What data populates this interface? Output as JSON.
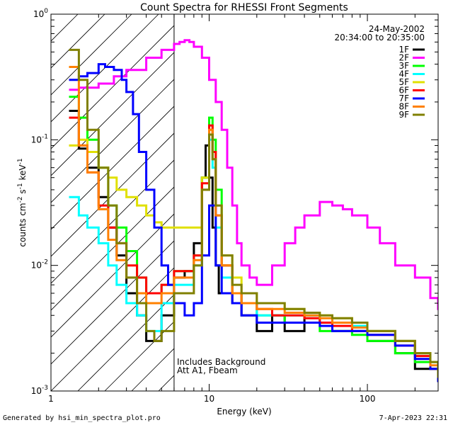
{
  "chart_data": {
    "type": "line",
    "title": "Count Spectra for RHESSI Front Segments",
    "xlabel": "Energy (keV)",
    "ylabel_parts": {
      "base": "counts cm",
      "exp1": "-2",
      "mid1": " s",
      "exp2": "-1",
      "mid2": " keV",
      "exp3": "-1"
    },
    "xscale": "log",
    "yscale": "log",
    "xlim": [
      1,
      280
    ],
    "ylim": [
      0.001,
      1.0
    ],
    "x_tick_labels": [
      {
        "value": 1,
        "label": "1"
      },
      {
        "value": 10,
        "label": "10"
      },
      {
        "value": 100,
        "label": "100"
      }
    ],
    "y_tick_labels": [
      {
        "value": 0.001,
        "base": "10",
        "exp": "-3"
      },
      {
        "value": 0.01,
        "base": "10",
        "exp": "-2"
      },
      {
        "value": 0.1,
        "base": "10",
        "exp": "-1"
      },
      {
        "value": 1.0,
        "base": "10",
        "exp": "0"
      }
    ],
    "hatched_region": {
      "from": 1,
      "to": 6
    },
    "annotation_top_right": [
      "24-May-2002",
      "20:34:00 to 20:35:00"
    ],
    "annotation_bottom": [
      "Includes Background",
      "Att A1, Fbeam"
    ],
    "legend_position": "top-right",
    "series": [
      {
        "name": "1F",
        "color": "#000000",
        "x": [
          1.3,
          1.5,
          1.7,
          2.0,
          2.3,
          2.6,
          3.0,
          3.5,
          4.0,
          5.0,
          6.0,
          7.0,
          8.0,
          9.0,
          9.5,
          10.0,
          10.5,
          11,
          11.5,
          12,
          14,
          16,
          20,
          25,
          30,
          40,
          50,
          60,
          80,
          100,
          150,
          200,
          250,
          280
        ],
        "y": [
          0.17,
          0.085,
          0.06,
          0.035,
          0.02,
          0.012,
          0.006,
          0.004,
          0.0025,
          0.004,
          0.008,
          0.009,
          0.015,
          0.05,
          0.09,
          0.05,
          0.02,
          0.01,
          0.006,
          0.006,
          0.005,
          0.004,
          0.003,
          0.004,
          0.003,
          0.004,
          0.0035,
          0.003,
          0.003,
          0.0025,
          0.002,
          0.0015,
          0.0015,
          0.0012
        ]
      },
      {
        "name": "2F",
        "color": "#ff00ff",
        "x": [
          1.3,
          1.5,
          2.0,
          2.5,
          3.0,
          4.0,
          5.0,
          6.0,
          6.5,
          7.0,
          7.5,
          8.0,
          9.0,
          10.0,
          11.0,
          12.0,
          13.0,
          14.0,
          15.0,
          16.0,
          18.0,
          20.0,
          25.0,
          30.0,
          35.0,
          40.0,
          50.0,
          60.0,
          70.0,
          80.0,
          100.0,
          120.0,
          150.0,
          200.0,
          250.0,
          280.0
        ],
        "y": [
          0.25,
          0.26,
          0.28,
          0.32,
          0.36,
          0.45,
          0.52,
          0.58,
          0.6,
          0.62,
          0.6,
          0.55,
          0.45,
          0.3,
          0.2,
          0.12,
          0.06,
          0.03,
          0.015,
          0.01,
          0.008,
          0.007,
          0.01,
          0.015,
          0.02,
          0.025,
          0.032,
          0.03,
          0.028,
          0.025,
          0.02,
          0.015,
          0.01,
          0.008,
          0.0055,
          0.0045
        ]
      },
      {
        "name": "3F",
        "color": "#00ff00",
        "x": [
          1.3,
          1.5,
          1.7,
          2.0,
          2.3,
          2.6,
          3.0,
          3.5,
          4.0,
          5.0,
          6.0,
          8.0,
          9.0,
          10.0,
          10.5,
          11.0,
          12.0,
          14.0,
          16.0,
          20.0,
          25.0,
          30.0,
          40.0,
          50.0,
          60.0,
          80.0,
          100.0,
          150.0,
          200.0,
          250.0,
          280.0
        ],
        "y": [
          0.22,
          0.15,
          0.1,
          0.06,
          0.03,
          0.02,
          0.013,
          0.008,
          0.006,
          0.007,
          0.009,
          0.012,
          0.05,
          0.15,
          0.1,
          0.04,
          0.01,
          0.006,
          0.005,
          0.004,
          0.004,
          0.0035,
          0.0035,
          0.003,
          0.003,
          0.0028,
          0.0025,
          0.002,
          0.0017,
          0.0015,
          0.0012
        ]
      },
      {
        "name": "4F",
        "color": "#00ffff",
        "x": [
          1.3,
          1.5,
          1.7,
          2.0,
          2.3,
          2.6,
          3.0,
          3.5,
          4.0,
          5.0,
          6.0,
          8.0,
          9.0,
          10.0,
          10.5,
          11.0,
          12.0,
          14.0,
          16.0,
          20.0,
          25.0,
          30.0,
          40.0,
          50.0,
          60.0,
          80.0,
          100.0,
          150.0,
          200.0,
          250.0,
          280.0
        ],
        "y": [
          0.035,
          0.025,
          0.02,
          0.015,
          0.01,
          0.007,
          0.005,
          0.004,
          0.003,
          0.005,
          0.007,
          0.01,
          0.04,
          0.1,
          0.06,
          0.02,
          0.008,
          0.006,
          0.005,
          0.004,
          0.004,
          0.004,
          0.004,
          0.0035,
          0.0035,
          0.0033,
          0.003,
          0.0025,
          0.002,
          0.0017,
          0.0014
        ]
      },
      {
        "name": "5F",
        "color": "#e0e000",
        "x": [
          1.3,
          1.5,
          1.7,
          2.0,
          2.3,
          2.6,
          3.0,
          3.5,
          4.0,
          4.5,
          5.0,
          6.0,
          8.0,
          9.0,
          10.0,
          10.5,
          11.0,
          12.0,
          14.0,
          16.0,
          20.0,
          25.0,
          30.0,
          40.0,
          50.0,
          60.0,
          80.0,
          100.0,
          150.0,
          200.0,
          250.0,
          280.0
        ],
        "y": [
          0.09,
          0.1,
          0.08,
          0.06,
          0.05,
          0.04,
          0.035,
          0.03,
          0.025,
          0.022,
          0.02,
          0.02,
          0.02,
          0.05,
          0.12,
          0.08,
          0.03,
          0.012,
          0.008,
          0.006,
          0.005,
          0.005,
          0.0045,
          0.0042,
          0.004,
          0.0038,
          0.0035,
          0.003,
          0.0025,
          0.002,
          0.0017,
          0.0013
        ]
      },
      {
        "name": "6F",
        "color": "#ff0000",
        "x": [
          1.3,
          1.5,
          1.7,
          2.0,
          2.3,
          2.6,
          3.0,
          3.5,
          4.0,
          5.0,
          6.0,
          8.0,
          9.0,
          10.0,
          10.5,
          11.0,
          12.0,
          14.0,
          16.0,
          20.0,
          25.0,
          30.0,
          40.0,
          50.0,
          60.0,
          80.0,
          100.0,
          150.0,
          200.0,
          250.0,
          280.0
        ],
        "y": [
          0.15,
          0.09,
          0.055,
          0.03,
          0.02,
          0.015,
          0.01,
          0.008,
          0.006,
          0.007,
          0.009,
          0.012,
          0.045,
          0.13,
          0.08,
          0.025,
          0.01,
          0.006,
          0.005,
          0.0045,
          0.004,
          0.004,
          0.0038,
          0.0035,
          0.0033,
          0.003,
          0.0028,
          0.0023,
          0.0019,
          0.0015,
          0.0012
        ]
      },
      {
        "name": "7F",
        "color": "#0000ff",
        "x": [
          1.3,
          1.5,
          1.7,
          2.0,
          2.2,
          2.5,
          2.8,
          3.0,
          3.3,
          3.6,
          4.0,
          4.5,
          5.0,
          5.5,
          6.0,
          7.0,
          8.0,
          9.0,
          10.0,
          11.0,
          12.0,
          14.0,
          16.0,
          20.0,
          25.0,
          30.0,
          40.0,
          50.0,
          60.0,
          80.0,
          100.0,
          150.0,
          200.0,
          250.0,
          280.0
        ],
        "y": [
          0.3,
          0.32,
          0.34,
          0.4,
          0.38,
          0.36,
          0.3,
          0.24,
          0.16,
          0.08,
          0.04,
          0.02,
          0.01,
          0.007,
          0.005,
          0.004,
          0.005,
          0.012,
          0.03,
          0.01,
          0.006,
          0.005,
          0.004,
          0.0035,
          0.0035,
          0.0035,
          0.0035,
          0.0033,
          0.003,
          0.003,
          0.0028,
          0.0023,
          0.0018,
          0.0015,
          0.0012
        ]
      },
      {
        "name": "8F",
        "color": "#ff8000",
        "x": [
          1.3,
          1.5,
          1.7,
          2.0,
          2.3,
          2.6,
          3.0,
          3.5,
          4.0,
          5.0,
          6.0,
          8.0,
          9.0,
          10.0,
          10.5,
          11.0,
          12.0,
          14.0,
          16.0,
          20.0,
          25.0,
          30.0,
          40.0,
          50.0,
          60.0,
          80.0,
          100.0,
          150.0,
          200.0,
          250.0,
          280.0
        ],
        "y": [
          0.38,
          0.09,
          0.055,
          0.028,
          0.016,
          0.011,
          0.008,
          0.006,
          0.005,
          0.006,
          0.008,
          0.011,
          0.04,
          0.12,
          0.07,
          0.025,
          0.01,
          0.006,
          0.005,
          0.0045,
          0.0045,
          0.0042,
          0.004,
          0.0038,
          0.0035,
          0.0032,
          0.003,
          0.0025,
          0.002,
          0.0016,
          0.0013
        ]
      },
      {
        "name": "9F",
        "color": "#808000",
        "x": [
          1.3,
          1.5,
          1.7,
          2.0,
          2.3,
          2.6,
          3.0,
          3.5,
          4.0,
          4.5,
          5.0,
          6.0,
          8.0,
          9.0,
          10.0,
          10.5,
          11.0,
          12.0,
          14.0,
          16.0,
          20.0,
          25.0,
          30.0,
          40.0,
          50.0,
          60.0,
          80.0,
          100.0,
          150.0,
          200.0,
          250.0,
          280.0
        ],
        "y": [
          0.52,
          0.3,
          0.12,
          0.06,
          0.03,
          0.015,
          0.008,
          0.005,
          0.003,
          0.0025,
          0.003,
          0.006,
          0.01,
          0.04,
          0.11,
          0.07,
          0.03,
          0.012,
          0.007,
          0.006,
          0.005,
          0.005,
          0.0045,
          0.0042,
          0.004,
          0.0038,
          0.0035,
          0.003,
          0.0025,
          0.002,
          0.0017,
          0.0013
        ]
      }
    ]
  },
  "footer": {
    "left": "Generated by hsi_min_spectra_plot.pro",
    "right": "7-Apr-2023 22:31"
  }
}
